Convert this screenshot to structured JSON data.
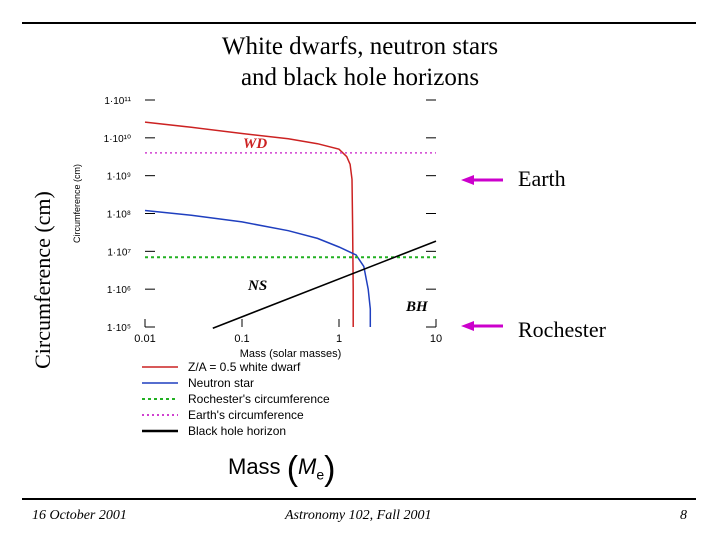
{
  "slide": {
    "title_line1": "White dwarfs, neutron stars",
    "title_line2": "and black hole horizons",
    "y_axis_outer_label": "Circumference (cm)",
    "earth_label": "Earth",
    "rochester_label": "Rochester",
    "mass_label_word": "Mass",
    "mass_symbol": "M",
    "mass_subscript": "e",
    "footer_date": "16 October 2001",
    "footer_course": "Astronomy 102, Fall 2001",
    "footer_page": "8"
  },
  "colors": {
    "white_dwarf": "#cc2222",
    "neutron_star": "#1f3fbf",
    "rochester": "#22b022",
    "earth": "#d040d0",
    "black_hole": "#000000",
    "arrow": "#cc00cc"
  },
  "chart_data": {
    "type": "line",
    "x_scale": "log",
    "y_scale": "log",
    "xlim": [
      0.01,
      10
    ],
    "ylim": [
      100000,
      100000000000
    ],
    "xlabel": "Mass (solar masses)",
    "ylabel": "Circumference (cm)",
    "x_ticks": [
      "0.01",
      "0.1",
      "1",
      "10"
    ],
    "y_ticks": [
      "1·10⁵",
      "1·10⁶",
      "1·10⁷",
      "1·10⁸",
      "1·10⁹",
      "1·10¹⁰",
      "1·10¹¹"
    ],
    "annotations": [
      "WD",
      "NS",
      "BH"
    ],
    "series": [
      {
        "name": "Z/A = 0.5 white dwarf",
        "key": "white_dwarf",
        "style": "solid",
        "x": [
          0.01,
          0.03,
          0.1,
          0.3,
          0.6,
          1.0,
          1.2,
          1.3,
          1.36,
          1.38,
          1.4,
          1.4
        ],
        "y": [
          26000000000,
          19000000000,
          13000000000,
          9500000000,
          7000000000,
          5000000000,
          3200000000,
          2000000000,
          800000000,
          50000000,
          1000000,
          100000
        ]
      },
      {
        "name": "Neutron star",
        "key": "neutron_star",
        "style": "solid",
        "x": [
          0.01,
          0.03,
          0.1,
          0.3,
          0.6,
          1.0,
          1.5,
          1.8,
          2.0,
          2.1,
          2.1
        ],
        "y": [
          120000000,
          90000000,
          60000000,
          35000000,
          22000000,
          13000000,
          8000000,
          4000000,
          1000000,
          300000,
          100000
        ]
      },
      {
        "name": "Rochester's circumference",
        "key": "rochester",
        "style": "dotted",
        "x": [
          0.01,
          10
        ],
        "y": [
          7000000,
          7000000
        ]
      },
      {
        "name": "Earth's circumference",
        "key": "earth",
        "style": "dotted",
        "x": [
          0.01,
          10
        ],
        "y": [
          4000000000,
          4000000000
        ]
      },
      {
        "name": "Black hole horizon",
        "key": "black_hole",
        "style": "solid",
        "x": [
          0.05,
          10
        ],
        "y": [
          93000,
          18600000
        ]
      }
    ]
  }
}
